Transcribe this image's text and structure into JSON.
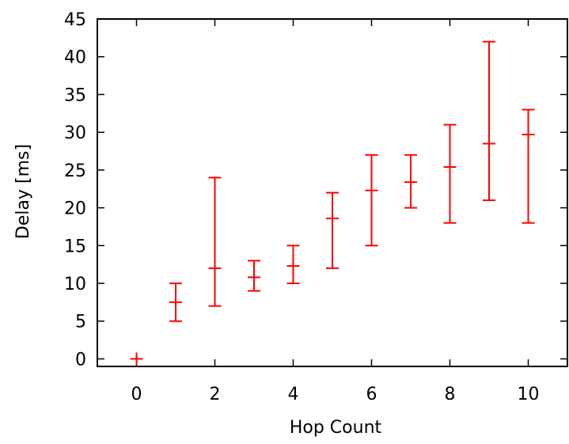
{
  "chart_data": {
    "type": "errorbar",
    "title": "",
    "xlabel": "Hop Count",
    "ylabel": "Delay [ms]",
    "xlim": [
      -1,
      11
    ],
    "ylim": [
      -1,
      45
    ],
    "xticks": [
      0,
      2,
      4,
      6,
      8,
      10
    ],
    "yticks": [
      0,
      5,
      10,
      15,
      20,
      25,
      30,
      35,
      40,
      45
    ],
    "grid": false,
    "legend": "none",
    "colors": {
      "series": "#ff0000",
      "axes": "#000000"
    },
    "series": [
      {
        "points": [
          {
            "x": 0,
            "y": 0.0,
            "low": 0,
            "high": 0
          },
          {
            "x": 1,
            "y": 7.5,
            "low": 5,
            "high": 10
          },
          {
            "x": 2,
            "y": 12.0,
            "low": 7,
            "high": 24
          },
          {
            "x": 3,
            "y": 10.8,
            "low": 9,
            "high": 13
          },
          {
            "x": 4,
            "y": 12.3,
            "low": 10,
            "high": 15
          },
          {
            "x": 5,
            "y": 18.6,
            "low": 12,
            "high": 22
          },
          {
            "x": 6,
            "y": 22.3,
            "low": 15,
            "high": 27
          },
          {
            "x": 7,
            "y": 23.4,
            "low": 20,
            "high": 27
          },
          {
            "x": 8,
            "y": 25.4,
            "low": 18,
            "high": 31
          },
          {
            "x": 9,
            "y": 28.5,
            "low": 21,
            "high": 42
          },
          {
            "x": 10,
            "y": 29.7,
            "low": 18,
            "high": 33
          }
        ]
      }
    ]
  }
}
